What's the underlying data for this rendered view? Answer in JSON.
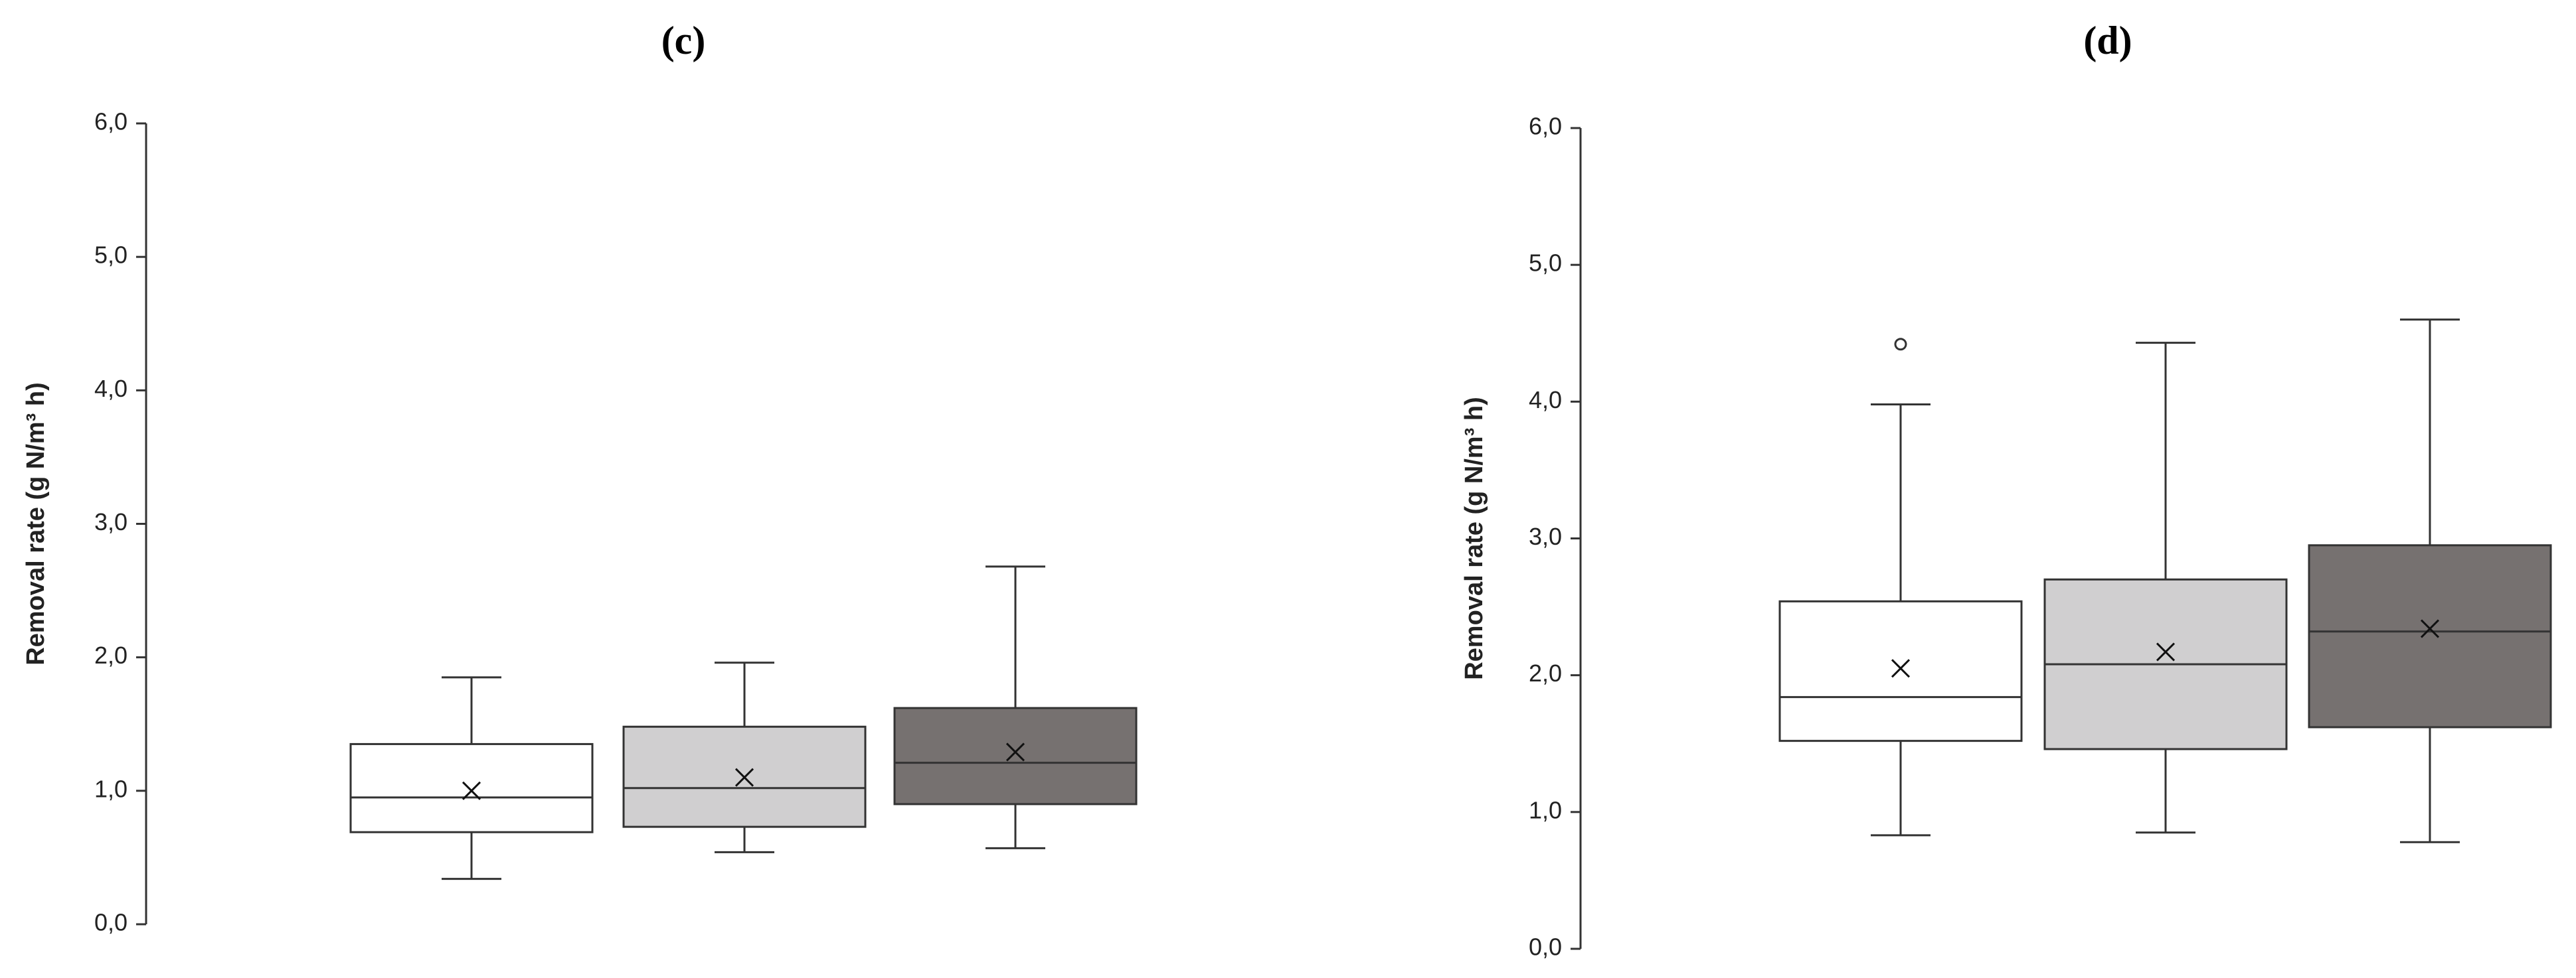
{
  "chart_data": [
    {
      "type": "box",
      "title": "(c)",
      "ylabel": "Removal rate (g N/m³ h)",
      "ylim": [
        0,
        6
      ],
      "yticks": [
        {
          "value": 0,
          "label": "0,0"
        },
        {
          "value": 1,
          "label": "1,0"
        },
        {
          "value": 2,
          "label": "2,0"
        },
        {
          "value": 3,
          "label": "3,0"
        },
        {
          "value": 4,
          "label": "4,0"
        },
        {
          "value": 5,
          "label": "5,0"
        },
        {
          "value": 6,
          "label": "6,0"
        }
      ],
      "boxes": [
        {
          "color": "#ffffff",
          "min": 0.34,
          "q1": 0.69,
          "median": 0.95,
          "q3": 1.35,
          "max": 1.85,
          "mean": 1.0
        },
        {
          "color": "#d0cfd0",
          "min": 0.54,
          "q1": 0.73,
          "median": 1.02,
          "q3": 1.48,
          "max": 1.96,
          "mean": 1.1
        },
        {
          "color": "#767170",
          "min": 0.57,
          "q1": 0.9,
          "median": 1.21,
          "q3": 1.62,
          "max": 2.68,
          "mean": 1.29
        }
      ]
    },
    {
      "type": "box",
      "title": "(d)",
      "ylabel": "Removal rate (g N/m³ h)",
      "ylim": [
        0,
        6
      ],
      "yticks": [
        {
          "value": 0,
          "label": "0,0"
        },
        {
          "value": 1,
          "label": "1,0"
        },
        {
          "value": 2,
          "label": "2,0"
        },
        {
          "value": 3,
          "label": "3,0"
        },
        {
          "value": 4,
          "label": "4,0"
        },
        {
          "value": 5,
          "label": "5,0"
        },
        {
          "value": 6,
          "label": "6,0"
        }
      ],
      "boxes": [
        {
          "color": "#ffffff",
          "min": 0.83,
          "q1": 1.52,
          "median": 1.84,
          "q3": 2.54,
          "max": 3.98,
          "mean": 2.05,
          "outliers": [
            4.42
          ]
        },
        {
          "color": "#d0cfd0",
          "min": 0.85,
          "q1": 1.46,
          "median": 2.08,
          "q3": 2.7,
          "max": 4.43,
          "mean": 2.17
        },
        {
          "color": "#767170",
          "min": 0.78,
          "q1": 1.62,
          "median": 2.32,
          "q3": 2.95,
          "max": 4.6,
          "mean": 2.34
        }
      ]
    }
  ]
}
